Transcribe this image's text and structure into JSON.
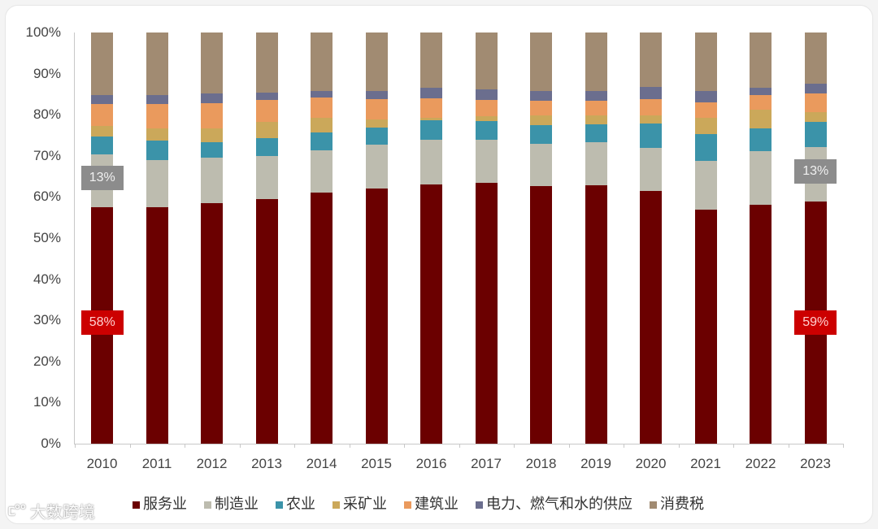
{
  "watermark": {
    "logo": "ᥴ°°",
    "text": "大数跨境"
  },
  "chart_data": {
    "type": "bar",
    "stacked": true,
    "normalized": true,
    "title": "",
    "xlabel": "",
    "ylabel": "",
    "ylim": [
      0,
      100
    ],
    "yticks": [
      "0%",
      "10%",
      "20%",
      "30%",
      "40%",
      "50%",
      "60%",
      "70%",
      "80%",
      "90%",
      "100%"
    ],
    "grid": false,
    "legend_position": "bottom",
    "categories": [
      "2010",
      "2011",
      "2012",
      "2013",
      "2014",
      "2015",
      "2016",
      "2017",
      "2018",
      "2019",
      "2020",
      "2021",
      "2022",
      "2023"
    ],
    "series": [
      {
        "name": "服务业",
        "color": "#6b0000",
        "values": [
          57.5,
          57.5,
          58.5,
          59.5,
          61.1,
          62.1,
          63.0,
          63.4,
          62.6,
          62.8,
          61.5,
          56.9,
          58.1,
          58.9
        ]
      },
      {
        "name": "制造业",
        "color": "#bdbcaf",
        "values": [
          12.9,
          11.5,
          11.1,
          10.5,
          10.2,
          10.6,
          10.9,
          10.5,
          10.3,
          10.5,
          10.4,
          11.9,
          13.0,
          13.2
        ]
      },
      {
        "name": "农业",
        "color": "#3b93a9",
        "values": [
          4.3,
          4.7,
          3.7,
          4.3,
          4.4,
          4.2,
          4.8,
          4.6,
          4.6,
          4.4,
          6.0,
          6.5,
          5.6,
          6.1
        ]
      },
      {
        "name": "采矿业",
        "color": "#cba85a",
        "values": [
          2.6,
          3.0,
          3.4,
          4.0,
          3.5,
          2.0,
          0.5,
          1.1,
          2.3,
          2.1,
          1.9,
          3.9,
          4.5,
          2.4
        ]
      },
      {
        "name": "建筑业",
        "color": "#ea9a5d",
        "values": [
          5.3,
          5.9,
          6.1,
          5.3,
          5.0,
          4.9,
          4.8,
          4.0,
          3.6,
          3.6,
          4.0,
          3.8,
          3.6,
          4.5
        ]
      },
      {
        "name": "电力、燃气和水的供应",
        "color": "#6b6e8e",
        "values": [
          2.2,
          2.2,
          2.4,
          1.8,
          1.6,
          2.0,
          2.6,
          2.6,
          2.4,
          2.4,
          3.0,
          2.8,
          1.8,
          2.4
        ]
      },
      {
        "name": "消费税",
        "color": "#a18b72",
        "values": [
          15.2,
          15.2,
          14.8,
          14.6,
          14.2,
          14.2,
          13.4,
          13.8,
          14.2,
          14.2,
          13.2,
          14.2,
          13.4,
          12.5
        ]
      }
    ],
    "annotations": [
      {
        "category": "2010",
        "series": "制造业",
        "text": "13%",
        "style": "grey"
      },
      {
        "category": "2010",
        "series": "服务业",
        "text": "58%",
        "style": "red"
      },
      {
        "category": "2023",
        "series": "制造业",
        "text": "13%",
        "style": "grey"
      },
      {
        "category": "2023",
        "series": "服务业",
        "text": "59%",
        "style": "red"
      }
    ]
  }
}
